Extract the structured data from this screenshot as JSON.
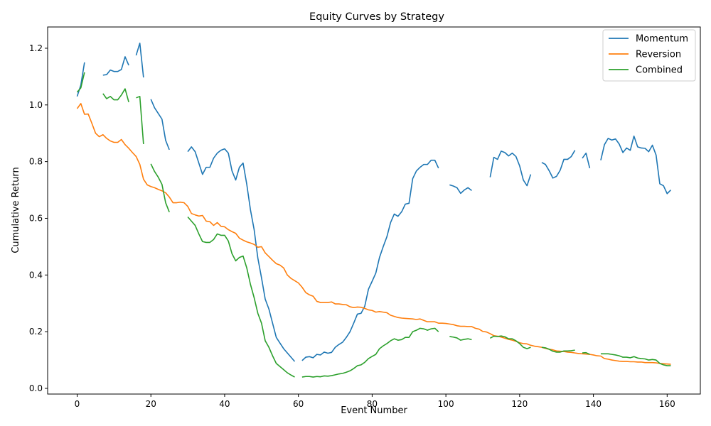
{
  "chart_data": {
    "type": "line",
    "title": "Equity Curves by Strategy",
    "xlabel": "Event Number",
    "ylabel": "Cumulative Return",
    "xlim": [
      -8,
      169
    ],
    "ylim": [
      -0.02,
      1.275
    ],
    "xticks": [
      0,
      20,
      40,
      60,
      80,
      100,
      120,
      140,
      160
    ],
    "yticks": [
      0.0,
      0.2,
      0.4,
      0.6,
      0.8,
      1.0,
      1.2
    ],
    "grid": false,
    "legend_position": "top-right",
    "series": [
      {
        "name": "Momentum",
        "color": "#1f77b4",
        "values": [
          1.03,
          1.07,
          1.15,
          null,
          null,
          null,
          null,
          1.105,
          1.107,
          1.123,
          1.118,
          1.118,
          1.125,
          1.17,
          1.14,
          null,
          1.175,
          1.218,
          1.097,
          null,
          1.02,
          0.99,
          0.97,
          0.95,
          0.875,
          0.842,
          null,
          null,
          null,
          null,
          0.835,
          0.852,
          0.835,
          0.795,
          0.755,
          0.78,
          0.78,
          0.812,
          0.83,
          0.84,
          0.845,
          0.83,
          0.767,
          0.735,
          0.78,
          0.795,
          0.72,
          0.63,
          0.56,
          0.46,
          0.39,
          0.315,
          0.28,
          0.23,
          0.18,
          0.16,
          0.14,
          0.125,
          0.11,
          0.095,
          null,
          0.098,
          0.11,
          0.112,
          0.108,
          0.12,
          0.118,
          0.128,
          0.124,
          0.127,
          0.145,
          0.155,
          0.163,
          0.18,
          0.2,
          0.23,
          0.262,
          0.265,
          0.29,
          0.35,
          0.378,
          0.407,
          0.462,
          0.5,
          0.535,
          0.585,
          0.615,
          0.607,
          0.623,
          0.65,
          0.653,
          0.74,
          0.767,
          0.78,
          0.79,
          0.79,
          0.805,
          0.805,
          0.777,
          null,
          null,
          0.718,
          0.714,
          0.708,
          0.688,
          0.7,
          0.708,
          0.698,
          null,
          null,
          null,
          null,
          0.745,
          0.815,
          0.808,
          0.837,
          0.832,
          0.82,
          0.83,
          0.818,
          0.785,
          0.735,
          0.715,
          0.755,
          null,
          null,
          0.797,
          0.79,
          0.768,
          0.742,
          0.748,
          0.77,
          0.808,
          0.808,
          0.818,
          0.84,
          null,
          0.812,
          0.83,
          0.777,
          null,
          null,
          0.805,
          0.86,
          0.882,
          0.876,
          0.88,
          0.862,
          0.832,
          0.848,
          0.84,
          0.89,
          0.852,
          0.848,
          0.847,
          0.835,
          0.858,
          0.823,
          0.722,
          0.715,
          0.687,
          0.7
        ]
      },
      {
        "name": "Reversion",
        "color": "#ff7f0e",
        "values": [
          0.987,
          1.005,
          0.967,
          0.968,
          0.935,
          0.9,
          0.888,
          0.895,
          0.882,
          0.873,
          0.868,
          0.868,
          0.878,
          0.86,
          0.847,
          0.832,
          0.818,
          0.79,
          0.738,
          0.718,
          0.712,
          0.708,
          0.702,
          0.697,
          0.69,
          0.675,
          0.655,
          0.655,
          0.657,
          0.655,
          0.642,
          0.617,
          0.612,
          0.608,
          0.61,
          0.59,
          0.588,
          0.575,
          0.585,
          0.572,
          0.57,
          0.56,
          0.553,
          0.547,
          0.53,
          0.523,
          0.517,
          0.513,
          0.508,
          0.498,
          0.5,
          0.478,
          0.465,
          0.452,
          0.44,
          0.435,
          0.425,
          0.4,
          0.388,
          0.38,
          0.372,
          0.357,
          0.338,
          0.33,
          0.325,
          0.307,
          0.303,
          0.303,
          0.303,
          0.305,
          0.298,
          0.298,
          0.296,
          0.295,
          0.288,
          0.285,
          0.287,
          0.286,
          0.282,
          0.277,
          0.275,
          0.269,
          0.271,
          0.269,
          0.267,
          0.258,
          0.254,
          0.25,
          0.248,
          0.247,
          0.246,
          0.245,
          0.243,
          0.245,
          0.24,
          0.235,
          0.235,
          0.235,
          0.23,
          0.23,
          0.229,
          0.227,
          0.225,
          0.221,
          0.219,
          0.219,
          0.218,
          0.218,
          0.212,
          0.209,
          0.201,
          0.199,
          0.193,
          0.186,
          0.184,
          0.181,
          0.177,
          0.173,
          0.17,
          0.166,
          0.161,
          0.158,
          0.157,
          0.152,
          0.149,
          0.147,
          0.145,
          0.141,
          0.138,
          0.136,
          0.132,
          0.131,
          0.13,
          0.128,
          0.127,
          0.125,
          0.123,
          0.122,
          0.121,
          0.12,
          0.118,
          0.115,
          0.114,
          0.105,
          0.103,
          0.1,
          0.098,
          0.096,
          0.095,
          0.095,
          0.094,
          0.094,
          0.093,
          0.093,
          0.091,
          0.091,
          0.091,
          0.09,
          0.088,
          0.087,
          0.086,
          0.085
        ]
      },
      {
        "name": "Combined",
        "color": "#2ca02c",
        "values": [
          1.045,
          1.06,
          1.115,
          null,
          null,
          null,
          null,
          1.04,
          1.022,
          1.03,
          1.018,
          1.018,
          1.035,
          1.057,
          1.01,
          null,
          1.025,
          1.03,
          0.862,
          null,
          0.792,
          0.765,
          0.745,
          0.72,
          0.655,
          0.622,
          null,
          null,
          null,
          null,
          0.605,
          0.59,
          0.575,
          0.545,
          0.518,
          0.515,
          0.515,
          0.525,
          0.545,
          0.54,
          0.54,
          0.52,
          0.475,
          0.45,
          0.462,
          0.467,
          0.425,
          0.367,
          0.32,
          0.265,
          0.23,
          0.168,
          0.145,
          0.115,
          0.088,
          0.077,
          0.066,
          0.055,
          0.047,
          0.04,
          null,
          0.04,
          0.042,
          0.042,
          0.04,
          0.042,
          0.041,
          0.044,
          0.043,
          0.045,
          0.048,
          0.051,
          0.053,
          0.057,
          0.062,
          0.07,
          0.08,
          0.083,
          0.092,
          0.105,
          0.113,
          0.12,
          0.14,
          0.15,
          0.158,
          0.168,
          0.175,
          0.17,
          0.172,
          0.18,
          0.18,
          0.2,
          0.205,
          0.212,
          0.21,
          0.205,
          0.21,
          0.212,
          0.2,
          null,
          null,
          0.183,
          0.181,
          0.178,
          0.17,
          0.173,
          0.175,
          0.172,
          null,
          null,
          null,
          null,
          0.177,
          0.184,
          0.183,
          0.185,
          0.182,
          0.175,
          0.175,
          0.168,
          0.158,
          0.145,
          0.14,
          0.145,
          null,
          null,
          0.145,
          0.143,
          0.138,
          0.131,
          0.128,
          0.128,
          0.132,
          0.132,
          0.133,
          0.135,
          null,
          0.125,
          0.126,
          0.12,
          null,
          null,
          0.122,
          0.122,
          0.122,
          0.12,
          0.118,
          0.115,
          0.11,
          0.11,
          0.108,
          0.112,
          0.107,
          0.105,
          0.104,
          0.1,
          0.102,
          0.1,
          0.088,
          0.083,
          0.08,
          0.08
        ]
      }
    ]
  }
}
